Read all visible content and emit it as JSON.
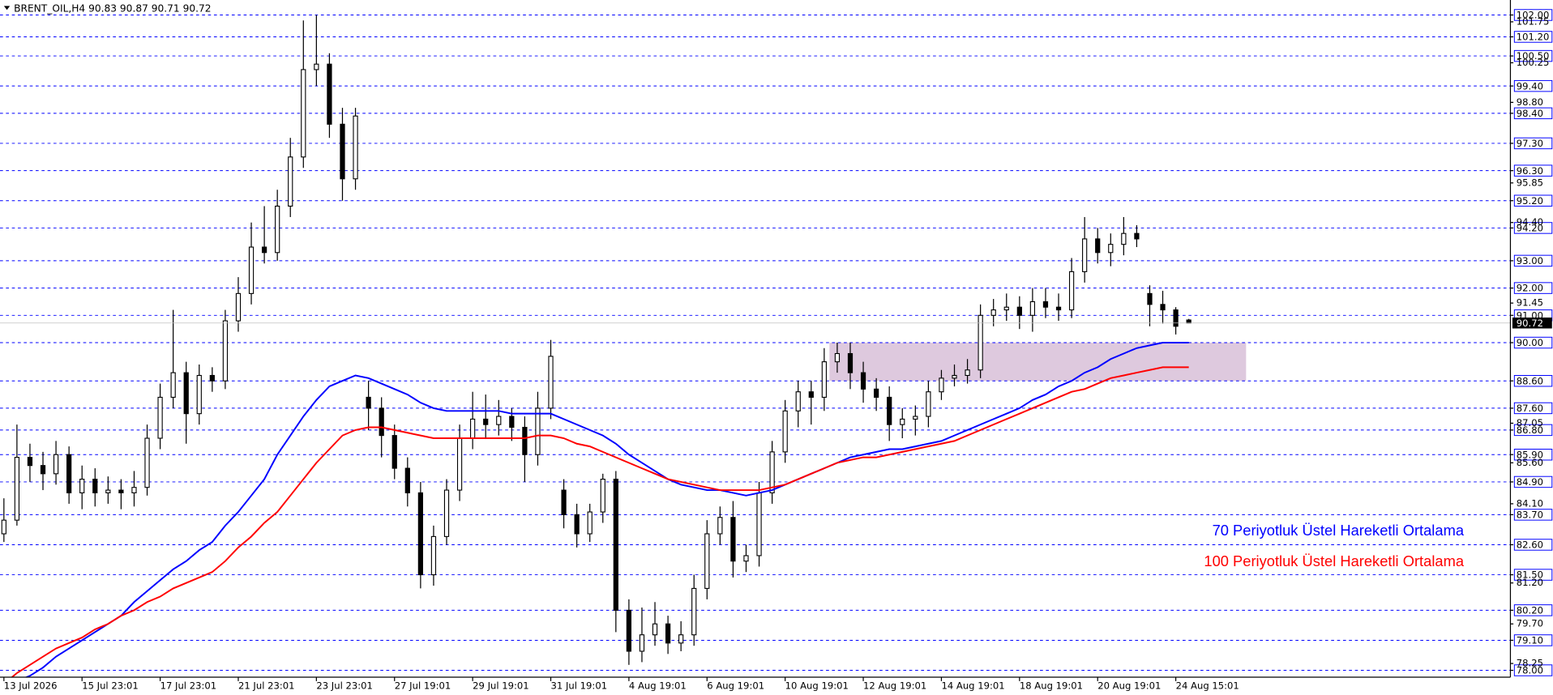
{
  "chart_data": {
    "type": "candlestick",
    "title": "BRENT_OIL,H4  90.83 90.87 90.71 90.72",
    "xlim": [
      -0.3,
      115.7
    ],
    "ylim": [
      77.75,
      102.44
    ],
    "xticks": [
      {
        "value": 0,
        "label": "13 Jul 2026"
      },
      {
        "value": 6,
        "label": "15 Jul 23:01"
      },
      {
        "value": 12,
        "label": "17 Jul 23:01"
      },
      {
        "value": 18,
        "label": "21 Jul 23:01"
      },
      {
        "value": 24,
        "label": "23 Jul 23:01"
      },
      {
        "value": 30,
        "label": "27 Jul 19:01"
      },
      {
        "value": 36,
        "label": "29 Jul 19:01"
      },
      {
        "value": 42,
        "label": "31 Jul 19:01"
      },
      {
        "value": 48,
        "label": "4 Aug 19:01"
      },
      {
        "value": 54,
        "label": "6 Aug 19:01"
      },
      {
        "value": 60,
        "label": "10 Aug 19:01"
      },
      {
        "value": 66,
        "label": "12 Aug 19:01"
      },
      {
        "value": 72,
        "label": "14 Aug 19:01"
      },
      {
        "value": 78,
        "label": "18 Aug 19:01"
      },
      {
        "value": 84,
        "label": "20 Aug 19:01"
      },
      {
        "value": 90,
        "label": "24 Aug 15:01"
      }
    ],
    "yticks": [
      101.75,
      100.25,
      {
        "value": 98.8,
        "label": "98.80"
      },
      95.85,
      {
        "value": 94.4,
        "label": "94.40"
      },
      91.45,
      87.05,
      {
        "value": 85.6,
        "label": "85.60"
      },
      {
        "value": 84.1,
        "label": "84.10"
      },
      {
        "value": 81.2,
        "label": "81.20"
      },
      {
        "value": 79.7,
        "label": "79.70"
      },
      78.25
    ],
    "levels": [
      {
        "value": 102,
        "label": "102.00"
      },
      {
        "value": 101.2,
        "label": "101.20"
      },
      {
        "value": 100.5,
        "label": "100.50"
      },
      {
        "value": 99.4,
        "label": "99.40"
      },
      {
        "value": 98.4,
        "label": "98.40"
      },
      {
        "value": 97.3,
        "label": "97.30"
      },
      {
        "value": 96.3,
        "label": "96.30"
      },
      {
        "value": 95.2,
        "label": "95.20"
      },
      {
        "value": 94.2,
        "label": "94.20"
      },
      {
        "value": 93,
        "label": "93.00"
      },
      {
        "value": 92,
        "label": "92.00"
      },
      {
        "value": 91,
        "label": "91.00"
      },
      {
        "value": 90,
        "label": "90.00"
      },
      {
        "value": 88.6,
        "label": "88.60"
      },
      {
        "value": 87.6,
        "label": "87.60"
      },
      {
        "value": 86.8,
        "label": "86.80"
      },
      {
        "value": 85.9,
        "label": "85.90"
      },
      {
        "value": 84.9,
        "label": "84.90"
      },
      {
        "value": 83.7,
        "label": "83.70"
      },
      {
        "value": 82.6,
        "label": "82.60"
      },
      {
        "value": 81.5,
        "label": "81.50"
      },
      {
        "value": 80.2,
        "label": "80.20"
      },
      {
        "value": 79.1,
        "label": "79.10"
      },
      {
        "value": 78,
        "label": "78.00"
      }
    ],
    "level_color": "#0000ff",
    "last_price": 90.72,
    "zone": {
      "low": 88.6,
      "high": 90.0,
      "x": [
        63.4,
        95.4
      ],
      "color": "#d8bfd8"
    },
    "ohlc": {
      "open": [
        83.0,
        83.5,
        85.8,
        85.5,
        85.2,
        85.9,
        84.5,
        85.0,
        84.5,
        84.6,
        84.5,
        84.7,
        86.5,
        88.0,
        88.9,
        87.4,
        88.8,
        88.6,
        90.8,
        91.8,
        93.5,
        93.3,
        95.0,
        96.8,
        100.0,
        100.2,
        98.0,
        96.0,
        88.0,
        87.6,
        86.6,
        85.4,
        84.5,
        81.5,
        82.9,
        84.6,
        86.5,
        87.2,
        87.0,
        87.3,
        86.9,
        85.9,
        87.6,
        84.6,
        83.7,
        83.0,
        83.8,
        85.0,
        80.2,
        78.7,
        79.3,
        79.7,
        79.0,
        79.3,
        81.0,
        83.0,
        83.6,
        82.0,
        82.2,
        84.5,
        86.0,
        87.5,
        88.2,
        88.0,
        89.3,
        89.6,
        88.9,
        88.3,
        88.0,
        87.0,
        87.2,
        87.3,
        88.2,
        88.7,
        88.8,
        89.0,
        91.0,
        91.2,
        91.3,
        91.0,
        91.5,
        91.3,
        91.2,
        92.6,
        93.8,
        93.3,
        93.6,
        94.0,
        91.8,
        91.4,
        91.2,
        90.83
      ],
      "high": [
        84.3,
        87.0,
        86.3,
        86.0,
        86.4,
        86.2,
        85.5,
        85.4,
        85.1,
        85.0,
        85.3,
        87.0,
        88.5,
        91.2,
        89.3,
        89.2,
        89.1,
        91.2,
        92.4,
        94.4,
        95.0,
        95.6,
        97.5,
        101.8,
        102.0,
        100.6,
        98.6,
        98.6,
        88.6,
        88.0,
        87.0,
        85.8,
        84.9,
        83.3,
        85.0,
        87.0,
        88.2,
        88.1,
        87.9,
        87.6,
        87.3,
        88.2,
        90.1,
        85.0,
        84.1,
        84.1,
        85.2,
        85.3,
        80.6,
        80.3,
        80.5,
        80.0,
        79.8,
        81.5,
        83.5,
        84.0,
        84.2,
        82.6,
        84.9,
        86.4,
        87.9,
        88.6,
        88.6,
        89.8,
        90.0,
        90.0,
        89.3,
        88.7,
        88.4,
        87.6,
        87.7,
        88.6,
        89.0,
        89.2,
        89.4,
        91.4,
        91.6,
        91.8,
        91.7,
        92.0,
        92.0,
        91.8,
        93.1,
        94.6,
        94.2,
        94.0,
        94.6,
        94.3,
        92.1,
        91.9,
        91.3,
        90.87
      ],
      "low": [
        82.7,
        83.3,
        84.9,
        84.6,
        84.8,
        84.1,
        83.9,
        84.0,
        84.1,
        83.9,
        84.0,
        84.4,
        86.1,
        87.6,
        86.3,
        87.0,
        88.2,
        88.3,
        90.4,
        91.4,
        92.9,
        93.0,
        94.6,
        96.4,
        99.4,
        97.5,
        95.2,
        95.6,
        86.8,
        85.8,
        85.0,
        84.0,
        81.0,
        81.1,
        82.6,
        84.2,
        86.1,
        86.5,
        86.6,
        86.4,
        84.9,
        85.5,
        87.2,
        83.2,
        82.5,
        82.7,
        83.4,
        79.4,
        78.2,
        78.3,
        78.9,
        78.6,
        78.7,
        78.9,
        80.6,
        82.6,
        81.4,
        81.6,
        81.8,
        84.1,
        85.6,
        86.9,
        87.0,
        87.5,
        88.9,
        88.3,
        87.8,
        87.5,
        86.4,
        86.5,
        86.6,
        86.9,
        87.9,
        88.4,
        88.5,
        88.7,
        90.6,
        90.8,
        90.5,
        90.4,
        90.9,
        90.8,
        90.9,
        92.2,
        92.9,
        92.8,
        93.2,
        93.5,
        90.6,
        90.7,
        90.3,
        90.71
      ],
      "close": [
        83.5,
        85.8,
        85.5,
        85.2,
        85.9,
        84.5,
        85.0,
        84.5,
        84.6,
        84.5,
        84.7,
        86.5,
        88.0,
        88.9,
        87.4,
        88.8,
        88.6,
        90.8,
        91.8,
        93.5,
        93.3,
        95.0,
        96.8,
        100.0,
        100.2,
        98.0,
        96.0,
        98.3,
        87.6,
        86.6,
        85.4,
        84.5,
        81.5,
        82.9,
        84.6,
        86.5,
        87.2,
        87.0,
        87.3,
        86.9,
        85.9,
        87.6,
        89.5,
        83.7,
        83.0,
        83.8,
        85.0,
        80.2,
        78.7,
        79.3,
        79.7,
        79.0,
        79.3,
        81.0,
        83.0,
        83.6,
        82.0,
        82.2,
        84.5,
        86.0,
        87.5,
        88.2,
        88.0,
        89.3,
        89.6,
        88.9,
        88.3,
        88.0,
        87.0,
        87.2,
        87.3,
        88.2,
        88.7,
        88.8,
        89.0,
        91.0,
        91.2,
        91.3,
        91.0,
        91.5,
        91.3,
        91.2,
        92.6,
        93.8,
        93.3,
        93.6,
        94.0,
        93.8,
        91.4,
        91.2,
        90.6,
        90.72
      ]
    },
    "series": [
      {
        "name": "70 Periyotluk Üstel Hareketli Ortalama",
        "color": "#0000ff",
        "values": [
          77.3,
          77.6,
          77.8,
          78.1,
          78.5,
          78.8,
          79.1,
          79.4,
          79.7,
          80.0,
          80.5,
          80.9,
          81.3,
          81.7,
          82.0,
          82.4,
          82.7,
          83.3,
          83.8,
          84.4,
          85.0,
          85.9,
          86.6,
          87.3,
          87.9,
          88.4,
          88.6,
          88.8,
          88.7,
          88.5,
          88.3,
          88.1,
          87.8,
          87.6,
          87.5,
          87.5,
          87.5,
          87.5,
          87.5,
          87.4,
          87.4,
          87.4,
          87.4,
          87.2,
          87.0,
          86.8,
          86.6,
          86.3,
          85.9,
          85.6,
          85.3,
          85.0,
          84.8,
          84.7,
          84.6,
          84.6,
          84.5,
          84.4,
          84.5,
          84.6,
          84.8,
          85.0,
          85.2,
          85.4,
          85.6,
          85.8,
          85.9,
          86.0,
          86.1,
          86.1,
          86.2,
          86.3,
          86.4,
          86.6,
          86.8,
          87.0,
          87.2,
          87.4,
          87.6,
          87.9,
          88.1,
          88.4,
          88.6,
          88.9,
          89.1,
          89.4,
          89.6,
          89.8,
          89.9,
          90.0,
          90.0,
          90.0
        ]
      },
      {
        "name": "100 Periyotluk Üstel Hareketli Ortalama",
        "color": "#ff0000",
        "values": [
          77.5,
          77.9,
          78.2,
          78.5,
          78.8,
          79.0,
          79.2,
          79.5,
          79.7,
          80.0,
          80.2,
          80.5,
          80.7,
          81.0,
          81.2,
          81.4,
          81.6,
          82.0,
          82.5,
          82.9,
          83.4,
          83.8,
          84.4,
          85.0,
          85.6,
          86.1,
          86.6,
          86.8,
          86.9,
          86.9,
          86.8,
          86.7,
          86.6,
          86.5,
          86.5,
          86.5,
          86.5,
          86.5,
          86.5,
          86.5,
          86.5,
          86.6,
          86.6,
          86.5,
          86.3,
          86.2,
          86.0,
          85.8,
          85.6,
          85.4,
          85.2,
          85.0,
          84.9,
          84.8,
          84.7,
          84.6,
          84.6,
          84.6,
          84.6,
          84.7,
          84.8,
          85.0,
          85.2,
          85.4,
          85.6,
          85.7,
          85.8,
          85.8,
          85.9,
          86.0,
          86.1,
          86.2,
          86.3,
          86.4,
          86.6,
          86.8,
          87.0,
          87.2,
          87.4,
          87.6,
          87.8,
          88.0,
          88.2,
          88.3,
          88.5,
          88.7,
          88.8,
          88.9,
          89.0,
          89.1,
          89.1,
          89.1
        ]
      }
    ]
  }
}
